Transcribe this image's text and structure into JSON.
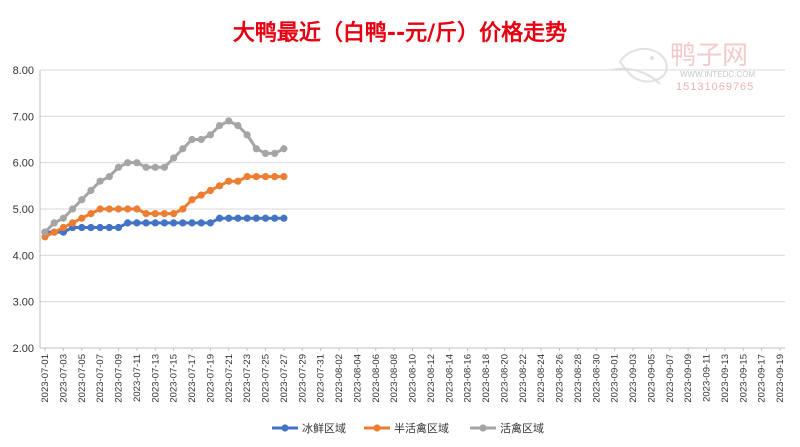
{
  "chart_data": {
    "type": "line",
    "title": "大鸭最近（白鸭--元/斤）价格走势",
    "ylim": [
      2.0,
      8.0
    ],
    "yticks": [
      "2.00",
      "3.00",
      "4.00",
      "5.00",
      "6.00",
      "7.00",
      "8.00"
    ],
    "categories": [
      "2023-07-01",
      "2023-07-03",
      "2023-07-05",
      "2023-07-07",
      "2023-07-09",
      "2023-07-11",
      "2023-07-13",
      "2023-07-15",
      "2023-07-17",
      "2023-07-19",
      "2023-07-21",
      "2023-07-23",
      "2023-07-25",
      "2023-07-27",
      "2023-07-29",
      "2023-07-31",
      "2023-08-02",
      "2023-08-04",
      "2023-08-06",
      "2023-08-08",
      "2023-08-10",
      "2023-08-12",
      "2023-08-14",
      "2023-08-16",
      "2023-08-18",
      "2023-08-20",
      "2023-08-22",
      "2023-08-24",
      "2023-08-26",
      "2023-08-28",
      "2023-08-30",
      "2023-09-01",
      "2023-09-03",
      "2023-09-05",
      "2023-09-07",
      "2023-09-09",
      "2023-09-11",
      "2023-09-13",
      "2023-09-15",
      "2023-09-17",
      "2023-09-19"
    ],
    "x": [
      "2023-07-01",
      "2023-07-02",
      "2023-07-03",
      "2023-07-04",
      "2023-07-05",
      "2023-07-06",
      "2023-07-07",
      "2023-07-08",
      "2023-07-09",
      "2023-07-10",
      "2023-07-11",
      "2023-07-12",
      "2023-07-13",
      "2023-07-14",
      "2023-07-15",
      "2023-07-16",
      "2023-07-17",
      "2023-07-18",
      "2023-07-19",
      "2023-07-20",
      "2023-07-21",
      "2023-07-22",
      "2023-07-23",
      "2023-07-24",
      "2023-07-25",
      "2023-07-26",
      "2023-07-27"
    ],
    "series": [
      {
        "name": "冰鲜区域",
        "color": "#4472c4",
        "values": [
          4.5,
          4.5,
          4.5,
          4.6,
          4.6,
          4.6,
          4.6,
          4.6,
          4.6,
          4.7,
          4.7,
          4.7,
          4.7,
          4.7,
          4.7,
          4.7,
          4.7,
          4.7,
          4.7,
          4.8,
          4.8,
          4.8,
          4.8,
          4.8,
          4.8,
          4.8,
          4.8
        ]
      },
      {
        "name": "半活禽区域",
        "color": "#ed7d31",
        "values": [
          4.4,
          4.5,
          4.6,
          4.7,
          4.8,
          4.9,
          5.0,
          5.0,
          5.0,
          5.0,
          5.0,
          4.9,
          4.9,
          4.9,
          4.9,
          5.0,
          5.2,
          5.3,
          5.4,
          5.5,
          5.6,
          5.6,
          5.7,
          5.7,
          5.7,
          5.7,
          5.7
        ]
      },
      {
        "name": "活禽区域",
        "color": "#a5a5a5",
        "values": [
          4.5,
          4.7,
          4.8,
          5.0,
          5.2,
          5.4,
          5.6,
          5.7,
          5.9,
          6.0,
          6.0,
          5.9,
          5.9,
          5.9,
          6.1,
          6.3,
          6.5,
          6.5,
          6.6,
          6.8,
          6.9,
          6.8,
          6.6,
          6.3,
          6.2,
          6.2,
          6.3
        ]
      }
    ],
    "grid": true,
    "legend": "bottom"
  },
  "watermark": {
    "brand": "鸭子网",
    "site": "WWW.INTEDC.COM",
    "phone": "15131069765"
  }
}
